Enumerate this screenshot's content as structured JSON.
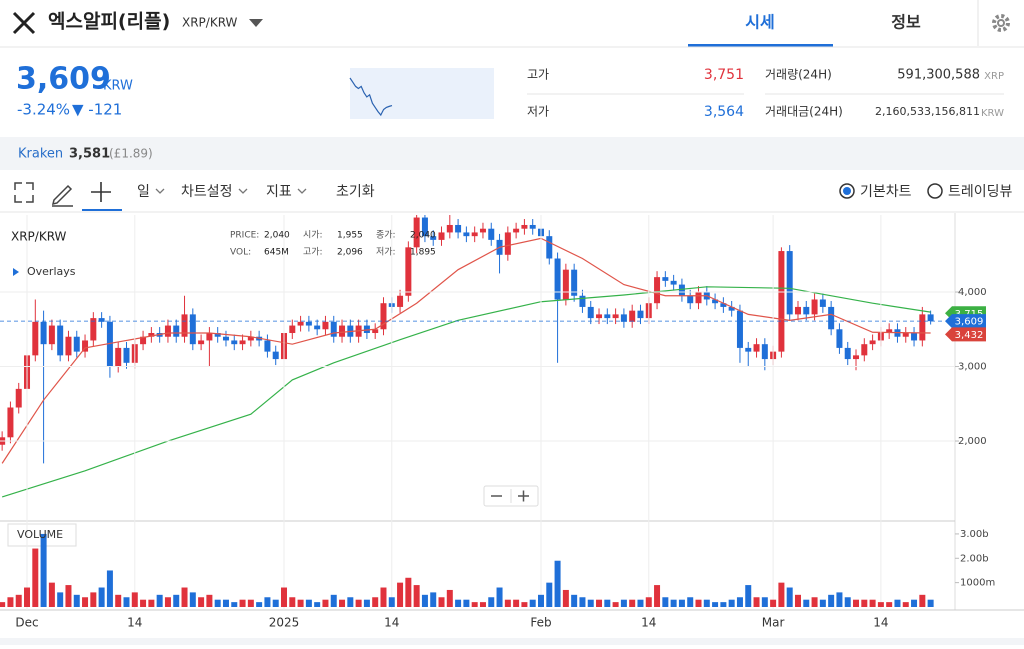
{
  "header": {
    "title": "엑스알피(리플)",
    "pair": "XRP/KRW",
    "tabs": [
      "시세",
      "정보"
    ]
  },
  "ticker": {
    "price": "3,609",
    "unit": "KRW",
    "change_pct": "-3.24%",
    "change": "▼ -121"
  },
  "stats": [
    {
      "label": "고가",
      "value": "3,751"
    },
    {
      "label": "저가",
      "value": "3,564"
    },
    {
      "label": "거래량(24H)",
      "value": "591,300,588",
      "unit": "XRP"
    },
    {
      "label": "거래대금(24H)",
      "value": "2,160,533,156,811",
      "unit": "KRW"
    }
  ],
  "exchange": {
    "name": "Kraken",
    "price": "3,581",
    "note": "(£1.89)"
  },
  "toolbar": {
    "items": [
      "일",
      "차트설정",
      "지표",
      "초기화"
    ],
    "views": [
      "기본차트",
      "트레이딩뷰"
    ]
  },
  "chart_data": [
    {
      "type": "candlestick",
      "title": "XRP/KRW",
      "overlays_label": "Overlays",
      "volume_label": "VOLUME",
      "info": [
        {
          "label": "PRICE:",
          "value": "2,040"
        },
        {
          "label": "시가:",
          "value": "1,955"
        },
        {
          "label": "종가:",
          "value": "2,040"
        },
        {
          "label": "VOL:",
          "value": "645M"
        },
        {
          "label": "고가:",
          "value": "2,096"
        },
        {
          "label": "저가:",
          "value": "1,895"
        }
      ],
      "categories": [
        null,
        null,
        null,
        "Dec",
        null,
        null,
        null,
        null,
        null,
        null,
        null,
        null,
        null,
        null,
        null,
        null,
        "14",
        null,
        null,
        null,
        null,
        null,
        null,
        null,
        null,
        null,
        null,
        null,
        null,
        null,
        null,
        null,
        null,
        null,
        "2025",
        null,
        null,
        null,
        null,
        null,
        null,
        null,
        null,
        null,
        null,
        null,
        null,
        "14",
        null,
        null,
        null,
        null,
        null,
        null,
        null,
        null,
        null,
        null,
        null,
        null,
        null,
        null,
        null,
        null,
        null,
        "Feb",
        null,
        null,
        null,
        null,
        null,
        null,
        null,
        null,
        null,
        null,
        null,
        null,
        "14",
        null,
        null,
        null,
        null,
        null,
        null,
        null,
        null,
        null,
        null,
        null,
        null,
        null,
        null,
        "Mar",
        null,
        null,
        null,
        null,
        null,
        null,
        null,
        null,
        null,
        null,
        null,
        null,
        "14",
        null,
        null,
        null,
        null,
        null,
        null
      ],
      "open": [
        1950,
        2050,
        2450,
        2700,
        3150,
        3600,
        3300,
        3550,
        3150,
        3400,
        3200,
        3350,
        3650,
        3600,
        3000,
        3250,
        3050,
        3300,
        3400,
        3450,
        3400,
        3550,
        3400,
        3700,
        3300,
        3350,
        3450,
        3400,
        3350,
        3300,
        3350,
        3400,
        3350,
        3200,
        3100,
        3450,
        3550,
        3600,
        3550,
        3500,
        3600,
        3400,
        3550,
        3400,
        3550,
        3450,
        3500,
        3850,
        3800,
        3950,
        4600,
        5000,
        4750,
        4700,
        4800,
        4900,
        4800,
        4750,
        4800,
        4850,
        4700,
        4500,
        4800,
        4850,
        4900,
        4850,
        4750,
        4450,
        3900,
        4300,
        3950,
        3800,
        3650,
        3700,
        3650,
        3700,
        3600,
        3750,
        3650,
        3850,
        4200,
        4150,
        4100,
        3950,
        3850,
        4000,
        3900,
        3850,
        3800,
        3750,
        3250,
        3200,
        3300,
        3100,
        3200,
        4550,
        3700,
        3800,
        3700,
        3900,
        3800,
        3500,
        3250,
        3100,
        3150,
        3300,
        3350,
        3450,
        3500,
        3400,
        3450,
        3350,
        3700
      ],
      "high": [
        2130,
        2530,
        2780,
        3230,
        3900,
        3750,
        3630,
        3630,
        3480,
        3480,
        3430,
        3730,
        3730,
        3680,
        3330,
        3330,
        3380,
        3480,
        3530,
        3530,
        3630,
        3630,
        3950,
        3780,
        3430,
        3530,
        3530,
        3480,
        3430,
        3430,
        3480,
        3480,
        3430,
        3280,
        3530,
        3630,
        3680,
        3680,
        3630,
        3680,
        3680,
        3630,
        3630,
        3630,
        3630,
        3580,
        3930,
        3930,
        4030,
        4680,
        5150,
        5080,
        4830,
        4880,
        5100,
        4980,
        4880,
        4880,
        4930,
        4930,
        4780,
        4880,
        4930,
        4980,
        4980,
        4930,
        4830,
        4530,
        4380,
        4380,
        4030,
        3880,
        3780,
        3780,
        3780,
        3780,
        3830,
        3830,
        3930,
        4280,
        4280,
        4230,
        4180,
        4030,
        4080,
        4080,
        3980,
        3930,
        3880,
        3830,
        3330,
        3380,
        3380,
        3280,
        4600,
        4630,
        3880,
        3880,
        3980,
        3980,
        3880,
        3580,
        3330,
        3230,
        3380,
        3430,
        3530,
        3580,
        3580,
        3530,
        3530,
        3800,
        3751
      ],
      "low": [
        1870,
        1970,
        2370,
        2620,
        3070,
        1700,
        3220,
        3070,
        3070,
        3120,
        3120,
        3270,
        3520,
        2850,
        2920,
        2970,
        2970,
        3220,
        3320,
        3320,
        3320,
        3320,
        3320,
        3220,
        3220,
        3000,
        3320,
        3270,
        3220,
        3220,
        3270,
        3270,
        3120,
        3020,
        3020,
        3370,
        3470,
        3470,
        3420,
        3420,
        3320,
        3320,
        3320,
        3320,
        3370,
        3370,
        3420,
        3720,
        3720,
        3870,
        4520,
        4670,
        4620,
        4620,
        4720,
        4720,
        4670,
        4670,
        4720,
        4620,
        4250,
        4420,
        4720,
        4770,
        4770,
        4670,
        4370,
        3050,
        3820,
        3870,
        3720,
        3570,
        3570,
        3570,
        3570,
        3520,
        3520,
        3570,
        3570,
        3770,
        4070,
        4020,
        3870,
        3770,
        3770,
        3820,
        3770,
        3720,
        3670,
        3050,
        3000,
        3120,
        2950,
        3020,
        3120,
        3620,
        3620,
        3620,
        3620,
        3720,
        3420,
        3170,
        3020,
        2950,
        3070,
        3220,
        3270,
        3370,
        3320,
        3320,
        3270,
        3270,
        3564
      ],
      "close": [
        2050,
        2450,
        2700,
        3150,
        3600,
        3300,
        3550,
        3150,
        3400,
        3200,
        3350,
        3650,
        3600,
        3000,
        3250,
        3050,
        3300,
        3400,
        3450,
        3400,
        3550,
        3400,
        3700,
        3300,
        3350,
        3450,
        3400,
        3350,
        3300,
        3350,
        3400,
        3350,
        3200,
        3100,
        3450,
        3550,
        3600,
        3550,
        3500,
        3600,
        3400,
        3550,
        3400,
        3550,
        3450,
        3500,
        3850,
        3800,
        3950,
        4600,
        5000,
        4750,
        4700,
        4800,
        4900,
        4800,
        4750,
        4800,
        4850,
        4700,
        4500,
        4800,
        4850,
        4900,
        4850,
        4750,
        4450,
        3900,
        4300,
        3950,
        3800,
        3650,
        3700,
        3650,
        3700,
        3600,
        3750,
        3650,
        3850,
        4200,
        4150,
        4100,
        3950,
        3850,
        4000,
        3900,
        3850,
        3800,
        3750,
        3250,
        3200,
        3300,
        3100,
        3200,
        4550,
        3700,
        3800,
        3700,
        3900,
        3800,
        3500,
        3250,
        3100,
        3150,
        3300,
        3350,
        3450,
        3500,
        3400,
        3450,
        3350,
        3700,
        3609
      ],
      "volume": [
        200000000.0,
        400000000.0,
        500000000.0,
        800000000.0,
        2400000000.0,
        3000000000.0,
        1000000000.0,
        600000000.0,
        900000000.0,
        500000000.0,
        400000000.0,
        600000000.0,
        800000000.0,
        1500000000.0,
        500000000.0,
        400000000.0,
        600000000.0,
        300000000.0,
        300000000.0,
        500000000.0,
        400000000.0,
        500000000.0,
        800000000.0,
        600000000.0,
        400000000.0,
        500000000.0,
        300000000.0,
        300000000.0,
        200000000.0,
        300000000.0,
        300000000.0,
        200000000.0,
        400000000.0,
        300000000.0,
        800000000.0,
        400000000.0,
        300000000.0,
        300000000.0,
        200000000.0,
        300000000.0,
        500000000.0,
        300000000.0,
        400000000.0,
        300000000.0,
        300000000.0,
        400000000.0,
        800000000.0,
        400000000.0,
        1000000000.0,
        1200000000.0,
        900000000.0,
        500000000.0,
        600000000.0,
        400000000.0,
        700000000.0,
        300000000.0,
        300000000.0,
        200000000.0,
        200000000.0,
        400000000.0,
        800000000.0,
        300000000.0,
        300000000.0,
        200000000.0,
        300000000.0,
        500000000.0,
        1000000000.0,
        1900000000.0,
        700000000.0,
        500000000.0,
        400000000.0,
        300000000.0,
        300000000.0,
        300000000.0,
        200000000.0,
        300000000.0,
        300000000.0,
        300000000.0,
        400000000.0,
        900000000.0,
        400000000.0,
        300000000.0,
        300000000.0,
        400000000.0,
        300000000.0,
        300000000.0,
        200000000.0,
        200000000.0,
        300000000.0,
        400000000.0,
        900000000.0,
        400000000.0,
        400000000.0,
        300000000.0,
        1000000000.0,
        800000000.0,
        500000000.0,
        300000000.0,
        400000000.0,
        300000000.0,
        500000000.0,
        600000000.0,
        400000000.0,
        300000000.0,
        300000000.0,
        300000000.0,
        200000000.0,
        200000000.0,
        300000000.0,
        200000000.0,
        300000000.0,
        500000000.0,
        300000000.0
      ],
      "up_color": "#e0323c",
      "down_color": "#1f6fd8",
      "lines": [
        {
          "color": "#e0554a",
          "x": [
            0,
            5,
            10,
            15,
            20,
            25,
            30,
            35,
            40,
            45,
            50,
            55,
            60,
            65,
            70,
            75,
            80,
            85,
            90,
            95,
            100,
            105,
            112
          ],
          "values": [
            1700,
            2550,
            3250,
            3350,
            3450,
            3450,
            3400,
            3300,
            3450,
            3500,
            3850,
            4300,
            4600,
            4720,
            4450,
            4100,
            3950,
            3950,
            3700,
            3620,
            3700,
            3460,
            3450
          ]
        },
        {
          "color": "#35b24a",
          "x": [
            0,
            10,
            20,
            30,
            35,
            40,
            48,
            55,
            65,
            75,
            85,
            95,
            105,
            112
          ],
          "values": [
            1250,
            1600,
            2000,
            2360,
            2820,
            3050,
            3360,
            3620,
            3870,
            3960,
            4070,
            4050,
            3850,
            3730
          ]
        }
      ],
      "ylim": [
        940,
        5034
      ],
      "yticks": [
        {
          "value": 2000,
          "label": "2,000"
        },
        {
          "value": 3000,
          "label": "3,000"
        },
        {
          "value": 4000,
          "label": "4,000"
        }
      ],
      "y2lim": [
        0,
        3490000000.0
      ],
      "y2ticks": [
        {
          "value": 1000000000.0,
          "label": "1000m"
        },
        {
          "value": 2000000000.0,
          "label": "2.00b"
        },
        {
          "value": 3000000000.0,
          "label": "3.00b"
        }
      ],
      "price_tags": [
        {
          "value": 3715,
          "label": "3,715",
          "color": "#3cb043"
        },
        {
          "value": 3609,
          "label": "3,609",
          "color": "#1f6fd8"
        },
        {
          "value": 3432,
          "label": "3,432",
          "color": "#d9433b"
        }
      ],
      "grid": true
    },
    {
      "type": "line",
      "color": "#2a62b0",
      "values": [
        3740,
        3720,
        3700,
        3690,
        3700,
        3670,
        3650,
        3660,
        3620,
        3600,
        3580,
        3564,
        3590,
        3600,
        3605,
        3609
      ]
    }
  ]
}
